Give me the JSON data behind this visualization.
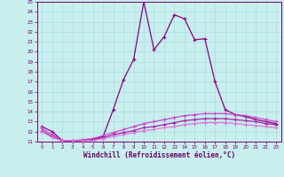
{
  "xlabel": "Windchill (Refroidissement éolien,°C)",
  "xlim": [
    -0.5,
    23.5
  ],
  "ylim": [
    11,
    25
  ],
  "yticks": [
    11,
    12,
    13,
    14,
    15,
    16,
    17,
    18,
    19,
    20,
    21,
    22,
    23,
    24,
    25
  ],
  "xticks": [
    0,
    1,
    2,
    3,
    4,
    5,
    6,
    7,
    8,
    9,
    10,
    11,
    12,
    13,
    14,
    15,
    16,
    17,
    18,
    19,
    20,
    21,
    22,
    23
  ],
  "background_color": "#c8eeee",
  "grid_color": "#aadddd",
  "line_color1": "#880088",
  "line_color2": "#cc44cc",
  "line_color3": "#aa22aa",
  "line_color4": "#dd77dd",
  "series1_x": [
    0,
    1,
    2,
    3,
    4,
    5,
    6,
    7,
    8,
    9,
    10,
    11,
    12,
    13,
    14,
    15,
    16,
    17,
    18,
    19,
    20,
    21,
    22,
    23
  ],
  "series1_y": [
    12.5,
    12.0,
    11.1,
    11.1,
    11.1,
    11.2,
    11.5,
    14.2,
    17.2,
    19.2,
    25.0,
    20.2,
    21.5,
    23.7,
    23.3,
    21.2,
    21.3,
    17.0,
    14.2,
    13.7,
    13.5,
    13.2,
    13.0,
    12.8
  ],
  "series2_x": [
    0,
    1,
    2,
    3,
    4,
    5,
    6,
    7,
    8,
    9,
    10,
    11,
    12,
    13,
    14,
    15,
    16,
    17,
    18,
    19,
    20,
    21,
    22,
    23
  ],
  "series2_y": [
    12.3,
    11.7,
    11.1,
    11.1,
    11.2,
    11.3,
    11.6,
    11.9,
    12.2,
    12.5,
    12.8,
    13.0,
    13.2,
    13.4,
    13.6,
    13.7,
    13.8,
    13.8,
    13.8,
    13.7,
    13.6,
    13.4,
    13.2,
    13.0
  ],
  "series3_x": [
    0,
    1,
    2,
    3,
    4,
    5,
    6,
    7,
    8,
    9,
    10,
    11,
    12,
    13,
    14,
    15,
    16,
    17,
    18,
    19,
    20,
    21,
    22,
    23
  ],
  "series3_y": [
    12.1,
    11.5,
    11.1,
    11.1,
    11.1,
    11.2,
    11.4,
    11.7,
    11.9,
    12.1,
    12.4,
    12.5,
    12.7,
    12.9,
    13.1,
    13.2,
    13.3,
    13.3,
    13.3,
    13.2,
    13.1,
    13.0,
    12.8,
    12.7
  ],
  "series4_x": [
    0,
    1,
    2,
    3,
    4,
    5,
    6,
    7,
    8,
    9,
    10,
    11,
    12,
    13,
    14,
    15,
    16,
    17,
    18,
    19,
    20,
    21,
    22,
    23
  ],
  "series4_y": [
    12.0,
    11.4,
    11.1,
    11.1,
    11.1,
    11.1,
    11.3,
    11.5,
    11.7,
    11.9,
    12.1,
    12.2,
    12.4,
    12.5,
    12.7,
    12.8,
    12.9,
    12.9,
    12.9,
    12.8,
    12.7,
    12.6,
    12.5,
    12.4
  ]
}
